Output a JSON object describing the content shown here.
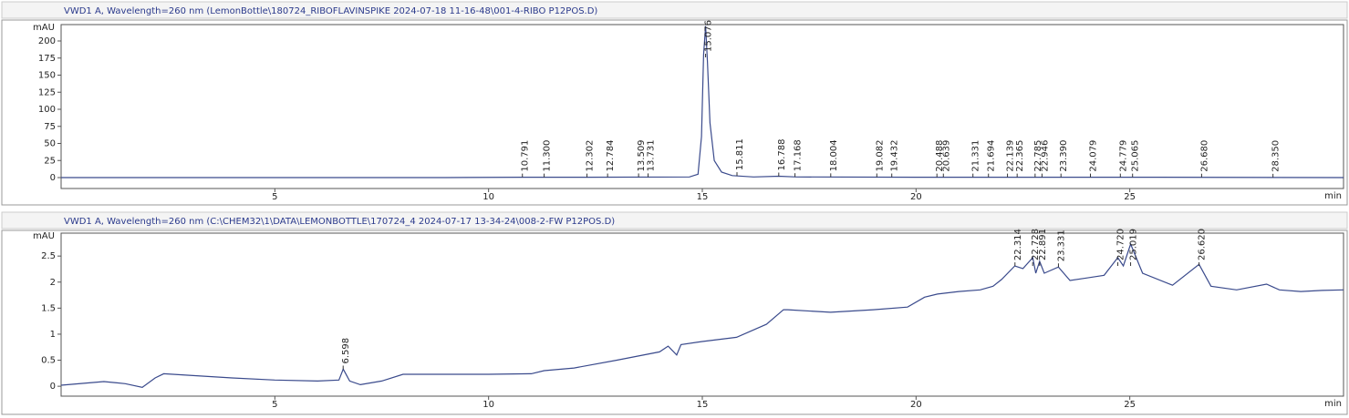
{
  "chart_data": [
    {
      "type": "line",
      "title": "VWD1 A, Wavelength=260 nm (LemonBottle\\180724_RIBOFLAVINSPIKE 2024-07-18 11-16-48\\001-4-RIBO P12POS.D)",
      "y_label": "mAU",
      "x_label": "min",
      "color": "#3a4a8c",
      "xlim": [
        0,
        30
      ],
      "xticks": [
        5,
        10,
        15,
        20,
        25
      ],
      "ylim": [
        -16,
        224
      ],
      "yticks": [
        0,
        25,
        50,
        75,
        100,
        125,
        150,
        175,
        200
      ],
      "x": [
        0,
        9,
        10.8,
        12.3,
        14.7,
        14.9,
        14.98,
        15.03,
        15.076,
        15.12,
        15.18,
        15.28,
        15.45,
        15.7,
        16.2,
        16.79,
        17.2,
        20,
        25,
        30
      ],
      "values": [
        0,
        0,
        0.5,
        0.5,
        1,
        5,
        60,
        180,
        222,
        170,
        80,
        25,
        8,
        3,
        1,
        2,
        1,
        0.5,
        0.5,
        0
      ],
      "peaks": [
        10.791,
        {
          "value": 11.3,
          "label": "11.300"
        },
        12.302,
        12.784,
        13.509,
        13.731,
        15.076,
        15.811,
        16.788,
        17.168,
        18.004,
        19.082,
        19.432,
        20.488,
        20.639,
        21.331,
        21.694,
        22.139,
        22.365,
        22.785,
        22.946,
        {
          "value": 23.39,
          "label": "23.390"
        },
        24.079,
        24.779,
        25.065,
        {
          "value": 26.68,
          "label": "26.680"
        },
        {
          "value": 28.35,
          "label": "28.350"
        }
      ]
    },
    {
      "type": "line",
      "title": "VWD1 A, Wavelength=260 nm (C:\\CHEM32\\1\\DATA\\LEMONBOTTLE\\170724_4 2024-07-17 13-34-24\\008-2-FW P12POS.D)",
      "y_label": "mAU",
      "x_label": "min",
      "color": "#3a4a8c",
      "xlim": [
        0,
        30
      ],
      "xticks": [
        5,
        10,
        15,
        20,
        25
      ],
      "ylim": [
        -0.19,
        2.94
      ],
      "yticks": [
        0,
        0.5,
        1,
        1.5,
        2,
        2.5
      ],
      "x": [
        0,
        1,
        1.5,
        1.9,
        2.2,
        2.4,
        3,
        4,
        5,
        6,
        6.5,
        6.6,
        6.75,
        7,
        7.5,
        8,
        9,
        10,
        11,
        11.3,
        12,
        13,
        14,
        14.2,
        14.4,
        14.5,
        15,
        15.8,
        16.5,
        16.9,
        17,
        18,
        19,
        19.8,
        20.2,
        20.5,
        21,
        21.5,
        21.8,
        22,
        22.31,
        22.5,
        22.73,
        22.8,
        22.89,
        23,
        23.33,
        23.6,
        24,
        24.4,
        24.72,
        24.85,
        25.02,
        25.3,
        26,
        26.62,
        26.9,
        27.5,
        28.2,
        28.5,
        29,
        29.5,
        30
      ],
      "values": [
        0.02,
        0.09,
        0.05,
        -0.02,
        0.16,
        0.24,
        0.21,
        0.16,
        0.12,
        0.1,
        0.12,
        0.33,
        0.1,
        0.03,
        0.1,
        0.23,
        0.23,
        0.23,
        0.24,
        0.3,
        0.35,
        0.5,
        0.66,
        0.77,
        0.6,
        0.8,
        0.86,
        0.94,
        1.19,
        1.47,
        1.47,
        1.42,
        1.47,
        1.52,
        1.71,
        1.77,
        1.82,
        1.85,
        1.92,
        2.05,
        2.31,
        2.26,
        2.47,
        2.17,
        2.4,
        2.17,
        2.29,
        2.03,
        2.08,
        2.13,
        2.47,
        2.31,
        2.73,
        2.17,
        1.94,
        2.34,
        1.92,
        1.85,
        1.96,
        1.85,
        1.82,
        1.84,
        1.85
      ],
      "peaks": [
        6.598,
        22.314,
        22.728,
        22.891,
        23.331,
        {
          "value": 24.72,
          "label": "24.720"
        },
        25.019,
        {
          "value": 26.62,
          "label": "26.620"
        }
      ]
    }
  ]
}
